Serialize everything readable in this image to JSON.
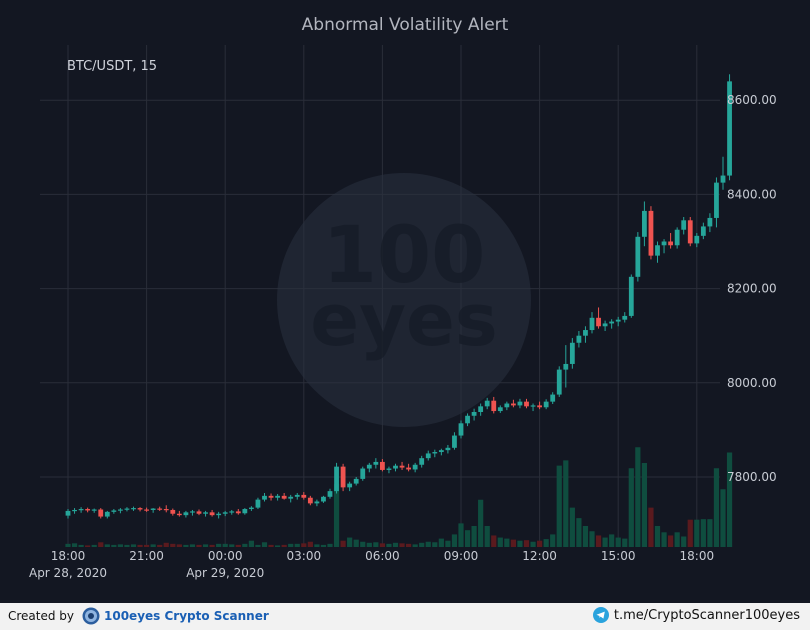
{
  "chart_data": {
    "type": "candlestick",
    "title": "Abnormal Volatility Alert",
    "symbol_label": "BTC/USDT, 15",
    "ylim": [
      7650,
      8700
    ],
    "y_ticks": [
      "7800.00",
      "8000.00",
      "8200.00",
      "8400.00",
      "8600.00"
    ],
    "y_tick_values": [
      7800,
      8000,
      8200,
      8400,
      8600
    ],
    "x_ticks": [
      "18:00",
      "21:00",
      "00:00",
      "03:00",
      "06:00",
      "09:00",
      "12:00",
      "15:00",
      "18:00"
    ],
    "x_date_labels": [
      {
        "label": "Apr 28, 2020",
        "under_tick": 0
      },
      {
        "label": "Apr 29, 2020",
        "under_tick": 2
      }
    ],
    "candles_per_tick": 12,
    "colors": {
      "up": "#26a69a",
      "down": "#ef5350",
      "up_volume": "#0f4d3f",
      "down_volume": "#5a1a1e",
      "grid": "#2a2e39",
      "text": "#c8ccd4"
    },
    "candles": [
      [
        7718,
        7732,
        7712,
        7728
      ],
      [
        7728,
        7734,
        7722,
        7730
      ],
      [
        7730,
        7736,
        7724,
        7732
      ],
      [
        7732,
        7735,
        7725,
        7729
      ],
      [
        7729,
        7733,
        7724,
        7731
      ],
      [
        7731,
        7734,
        7712,
        7716
      ],
      [
        7716,
        7728,
        7712,
        7726
      ],
      [
        7726,
        7732,
        7722,
        7729
      ],
      [
        7729,
        7734,
        7723,
        7731
      ],
      [
        7731,
        7736,
        7727,
        7733
      ],
      [
        7733,
        7737,
        7728,
        7734
      ],
      [
        7734,
        7736,
        7727,
        7731
      ],
      [
        7731,
        7735,
        7726,
        7730
      ],
      [
        7730,
        7734,
        7724,
        7733
      ],
      [
        7733,
        7737,
        7728,
        7732
      ],
      [
        7732,
        7740,
        7725,
        7730
      ],
      [
        7730,
        7733,
        7718,
        7722
      ],
      [
        7722,
        7728,
        7716,
        7719
      ],
      [
        7719,
        7728,
        7714,
        7725
      ],
      [
        7725,
        7730,
        7718,
        7727
      ],
      [
        7727,
        7731,
        7719,
        7722
      ],
      [
        7722,
        7728,
        7716,
        7725
      ],
      [
        7725,
        7730,
        7716,
        7719
      ],
      [
        7719,
        7726,
        7712,
        7722
      ],
      [
        7722,
        7728,
        7717,
        7725
      ],
      [
        7725,
        7730,
        7720,
        7727
      ],
      [
        7727,
        7732,
        7720,
        7723
      ],
      [
        7723,
        7734,
        7720,
        7732
      ],
      [
        7732,
        7738,
        7728,
        7735
      ],
      [
        7735,
        7756,
        7732,
        7752
      ],
      [
        7752,
        7766,
        7748,
        7760
      ],
      [
        7760,
        7765,
        7750,
        7756
      ],
      [
        7756,
        7764,
        7750,
        7760
      ],
      [
        7760,
        7766,
        7752,
        7754
      ],
      [
        7754,
        7762,
        7746,
        7758
      ],
      [
        7758,
        7766,
        7752,
        7762
      ],
      [
        7762,
        7768,
        7752,
        7756
      ],
      [
        7756,
        7760,
        7740,
        7744
      ],
      [
        7744,
        7752,
        7738,
        7748
      ],
      [
        7748,
        7760,
        7745,
        7758
      ],
      [
        7758,
        7775,
        7754,
        7770
      ],
      [
        7770,
        7830,
        7765,
        7822
      ],
      [
        7822,
        7828,
        7770,
        7778
      ],
      [
        7778,
        7790,
        7770,
        7786
      ],
      [
        7786,
        7800,
        7782,
        7796
      ],
      [
        7796,
        7822,
        7792,
        7818
      ],
      [
        7818,
        7830,
        7810,
        7826
      ],
      [
        7826,
        7840,
        7818,
        7832
      ],
      [
        7832,
        7838,
        7812,
        7815
      ],
      [
        7815,
        7822,
        7808,
        7818
      ],
      [
        7818,
        7828,
        7812,
        7824
      ],
      [
        7824,
        7832,
        7815,
        7820
      ],
      [
        7820,
        7828,
        7812,
        7816
      ],
      [
        7816,
        7830,
        7810,
        7826
      ],
      [
        7826,
        7845,
        7820,
        7840
      ],
      [
        7840,
        7856,
        7835,
        7850
      ],
      [
        7850,
        7858,
        7842,
        7853
      ],
      [
        7853,
        7860,
        7846,
        7857
      ],
      [
        7857,
        7868,
        7850,
        7862
      ],
      [
        7862,
        7895,
        7858,
        7888
      ],
      [
        7888,
        7920,
        7882,
        7914
      ],
      [
        7914,
        7935,
        7908,
        7930
      ],
      [
        7930,
        7945,
        7920,
        7938
      ],
      [
        7938,
        7956,
        7930,
        7950
      ],
      [
        7950,
        7968,
        7944,
        7962
      ],
      [
        7962,
        7970,
        7935,
        7940
      ],
      [
        7940,
        7952,
        7936,
        7948
      ],
      [
        7948,
        7960,
        7942,
        7956
      ],
      [
        7956,
        7964,
        7948,
        7952
      ],
      [
        7952,
        7966,
        7946,
        7960
      ],
      [
        7960,
        7966,
        7946,
        7950
      ],
      [
        7950,
        7956,
        7940,
        7952
      ],
      [
        7952,
        7960,
        7944,
        7948
      ],
      [
        7948,
        7965,
        7944,
        7960
      ],
      [
        7960,
        7980,
        7955,
        7975
      ],
      [
        7975,
        8035,
        7970,
        8028
      ],
      [
        8028,
        8080,
        7990,
        8040
      ],
      [
        8040,
        8095,
        8030,
        8085
      ],
      [
        8085,
        8110,
        8075,
        8100
      ],
      [
        8100,
        8120,
        8085,
        8112
      ],
      [
        8112,
        8150,
        8105,
        8138
      ],
      [
        8138,
        8160,
        8115,
        8120
      ],
      [
        8120,
        8132,
        8110,
        8126
      ],
      [
        8126,
        8135,
        8115,
        8130
      ],
      [
        8130,
        8140,
        8120,
        8134
      ],
      [
        8134,
        8150,
        8128,
        8142
      ],
      [
        8142,
        8230,
        8138,
        8225
      ],
      [
        8225,
        8320,
        8215,
        8310
      ],
      [
        8310,
        8385,
        8290,
        8365
      ],
      [
        8365,
        8375,
        8262,
        8270
      ],
      [
        8270,
        8300,
        8255,
        8292
      ],
      [
        8292,
        8305,
        8275,
        8300
      ],
      [
        8300,
        8318,
        8285,
        8292
      ],
      [
        8292,
        8330,
        8285,
        8325
      ],
      [
        8325,
        8352,
        8315,
        8345
      ],
      [
        8345,
        8352,
        8290,
        8296
      ],
      [
        8296,
        8318,
        8288,
        8312
      ],
      [
        8312,
        8340,
        8305,
        8332
      ],
      [
        8332,
        8360,
        8320,
        8350
      ],
      [
        8350,
        8436,
        8330,
        8425
      ],
      [
        8425,
        8480,
        8410,
        8440
      ],
      [
        8440,
        8655,
        8430,
        8640
      ]
    ],
    "volumes": [
      6,
      7,
      4,
      3,
      4,
      9,
      5,
      4,
      5,
      4,
      5,
      4,
      4,
      5,
      4,
      8,
      6,
      5,
      4,
      5,
      4,
      5,
      4,
      6,
      6,
      5,
      4,
      6,
      12,
      4,
      9,
      4,
      3,
      4,
      6,
      6,
      7,
      10,
      5,
      4,
      6,
      120,
      12,
      18,
      14,
      10,
      8,
      9,
      7,
      6,
      8,
      7,
      6,
      5,
      8,
      10,
      9,
      16,
      12,
      24,
      45,
      32,
      40,
      90,
      40,
      22,
      18,
      16,
      14,
      12,
      13,
      10,
      12,
      15,
      24,
      155,
      165,
      75,
      55,
      40,
      30,
      22,
      18,
      24,
      18,
      16,
      150,
      190,
      160,
      75,
      40,
      28,
      22,
      28,
      20,
      52,
      52,
      53,
      53,
      150,
      110,
      180
    ]
  },
  "footer": {
    "created_by": "Created by",
    "brand_name": "100eyes Crypto Scanner",
    "telegram_text": "t.me/CryptoScanner100eyes"
  },
  "watermark": {
    "line1": "100",
    "line2": "eyes"
  }
}
